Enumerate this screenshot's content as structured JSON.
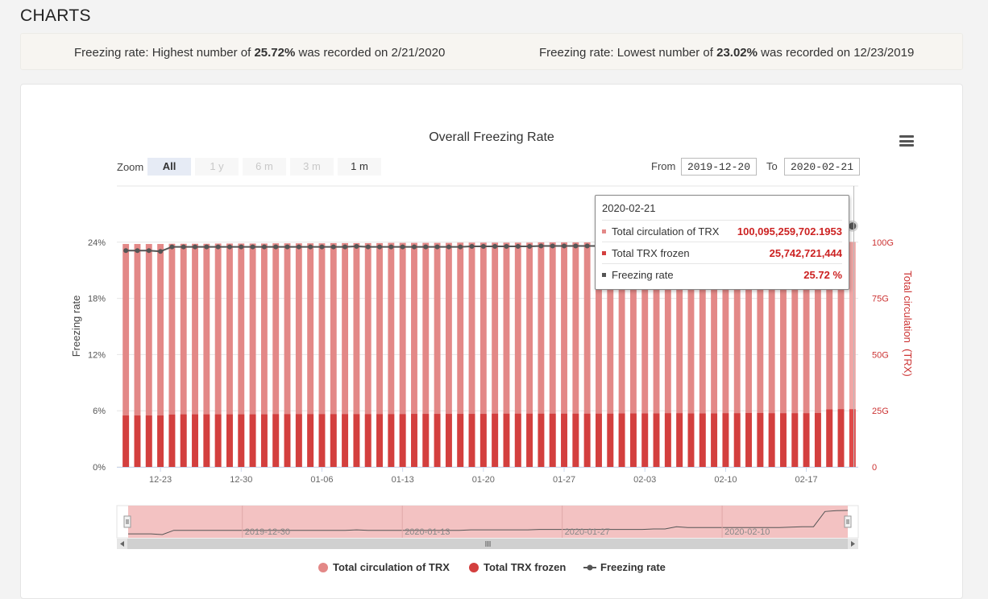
{
  "page": {
    "title": "CHARTS"
  },
  "summary": {
    "high_prefix": "Freezing rate: Highest number of ",
    "high_value": "25.72%",
    "high_suffix": " was recorded on 2/21/2020",
    "low_prefix": "Freezing rate: Lowest number of ",
    "low_value": "23.02%",
    "low_suffix": " was recorded on 12/23/2019"
  },
  "toolbar": {
    "zoom_label": "Zoom",
    "zoom_buttons": [
      "All",
      "1 y",
      "6 m",
      "3 m",
      "1 m"
    ],
    "from_label": "From",
    "from_value": "2019-12-20",
    "to_label": "To",
    "to_value": "2020-02-21"
  },
  "tooltip": {
    "date": "2020-02-21",
    "rows": [
      {
        "name": "Total circulation of TRX",
        "value": "100,095,259,702.1953"
      },
      {
        "name": "Total TRX frozen",
        "value": "25,742,721,444"
      },
      {
        "name": "Freezing rate",
        "value": "25.72 %"
      }
    ]
  },
  "legend": [
    "Total circulation of TRX",
    "Total TRX frozen",
    "Freezing rate"
  ],
  "colors": {
    "circulation": "#e38887",
    "frozen": "#d33f3e",
    "rate": "#555555",
    "navigator_fill": "#f3c2c2",
    "right_axis": "#cc3333"
  },
  "chart_data": {
    "type": "bar",
    "title": "Overall Freezing Rate",
    "ylabel": "Freezing rate",
    "y2label": "Total circulation  (TRX)",
    "ylim": [
      0,
      30
    ],
    "y2lim": [
      0,
      125
    ],
    "y_ticks": [
      "0%",
      "6%",
      "12%",
      "18%",
      "24%"
    ],
    "y2_ticks": [
      "0",
      "25G",
      "50G",
      "75G",
      "100G"
    ],
    "x_ticks": [
      "12-23",
      "12-30",
      "01-06",
      "01-13",
      "01-20",
      "01-27",
      "02-03",
      "02-10",
      "02-17"
    ],
    "navigator_labels": [
      "2019-12-30",
      "2020-01-13",
      "2020-01-27",
      "2020-02-10"
    ],
    "x": [
      "2019-12-20",
      "2019-12-21",
      "2019-12-22",
      "2019-12-23",
      "2019-12-24",
      "2019-12-25",
      "2019-12-26",
      "2019-12-27",
      "2019-12-28",
      "2019-12-29",
      "2019-12-30",
      "2019-12-31",
      "2020-01-01",
      "2020-01-02",
      "2020-01-03",
      "2020-01-04",
      "2020-01-05",
      "2020-01-06",
      "2020-01-07",
      "2020-01-08",
      "2020-01-09",
      "2020-01-10",
      "2020-01-11",
      "2020-01-12",
      "2020-01-13",
      "2020-01-14",
      "2020-01-15",
      "2020-01-16",
      "2020-01-17",
      "2020-01-18",
      "2020-01-19",
      "2020-01-20",
      "2020-01-21",
      "2020-01-22",
      "2020-01-23",
      "2020-01-24",
      "2020-01-25",
      "2020-01-26",
      "2020-01-27",
      "2020-01-28",
      "2020-01-29",
      "2020-01-30",
      "2020-01-31",
      "2020-02-01",
      "2020-02-02",
      "2020-02-03",
      "2020-02-04",
      "2020-02-05",
      "2020-02-06",
      "2020-02-07",
      "2020-02-08",
      "2020-02-09",
      "2020-02-10",
      "2020-02-11",
      "2020-02-12",
      "2020-02-13",
      "2020-02-14",
      "2020-02-15",
      "2020-02-16",
      "2020-02-17",
      "2020-02-18",
      "2020-02-19",
      "2020-02-20",
      "2020-02-21"
    ],
    "series": [
      {
        "name": "Total circulation of TRX",
        "axis": "right",
        "values": [
          99.2,
          99.2,
          99.2,
          99.2,
          99.3,
          99.3,
          99.3,
          99.3,
          99.4,
          99.4,
          99.4,
          99.4,
          99.4,
          99.5,
          99.5,
          99.5,
          99.5,
          99.5,
          99.6,
          99.6,
          99.6,
          99.6,
          99.6,
          99.7,
          99.7,
          99.7,
          99.7,
          99.7,
          99.7,
          99.8,
          99.8,
          99.8,
          99.8,
          99.8,
          99.8,
          99.8,
          99.9,
          99.9,
          99.9,
          99.9,
          99.9,
          99.9,
          99.9,
          99.9,
          99.9,
          100.0,
          100.0,
          100.0,
          100.0,
          100.0,
          100.0,
          100.0,
          100.0,
          100.0,
          100.0,
          100.0,
          100.0,
          100.0,
          100.0,
          100.1,
          100.1,
          100.1,
          100.1,
          100.1
        ]
      },
      {
        "name": "Total TRX frozen",
        "axis": "right",
        "values": [
          22.9,
          22.9,
          22.9,
          22.9,
          23.3,
          23.4,
          23.4,
          23.4,
          23.4,
          23.4,
          23.4,
          23.4,
          23.4,
          23.5,
          23.5,
          23.5,
          23.5,
          23.5,
          23.5,
          23.5,
          23.5,
          23.5,
          23.5,
          23.5,
          23.5,
          23.6,
          23.6,
          23.6,
          23.6,
          23.6,
          23.6,
          23.6,
          23.7,
          23.7,
          23.7,
          23.7,
          23.7,
          23.7,
          23.7,
          23.7,
          23.7,
          23.7,
          23.7,
          23.8,
          23.8,
          23.8,
          23.8,
          23.9,
          23.9,
          23.8,
          23.8,
          23.8,
          23.9,
          23.9,
          24.0,
          24.0,
          23.9,
          23.9,
          23.9,
          23.9,
          24.0,
          25.6,
          25.7,
          25.7
        ]
      },
      {
        "name": "Freezing rate",
        "axis": "left",
        "type": "line",
        "values": [
          23.1,
          23.1,
          23.1,
          23.02,
          23.5,
          23.5,
          23.5,
          23.5,
          23.5,
          23.5,
          23.5,
          23.5,
          23.5,
          23.5,
          23.5,
          23.5,
          23.5,
          23.5,
          23.5,
          23.5,
          23.55,
          23.5,
          23.5,
          23.5,
          23.5,
          23.5,
          23.5,
          23.5,
          23.5,
          23.5,
          23.55,
          23.55,
          23.55,
          23.55,
          23.55,
          23.55,
          23.6,
          23.6,
          23.6,
          23.6,
          23.6,
          23.6,
          23.6,
          23.6,
          23.6,
          23.6,
          23.65,
          23.65,
          23.9,
          23.8,
          23.8,
          23.8,
          23.8,
          23.8,
          23.8,
          23.8,
          23.8,
          23.8,
          23.85,
          23.9,
          23.9,
          25.6,
          25.7,
          25.72
        ]
      }
    ]
  }
}
